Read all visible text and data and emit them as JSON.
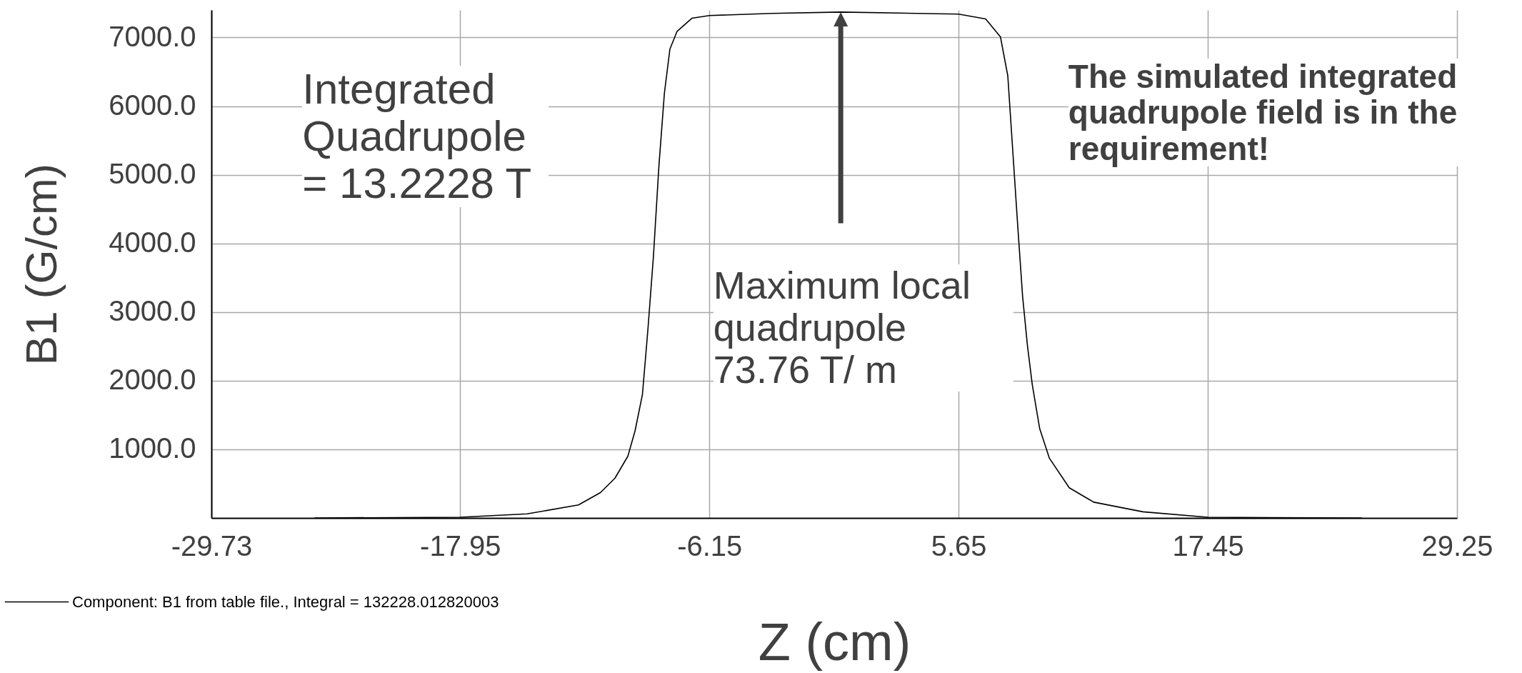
{
  "chart_data": {
    "type": "line",
    "xlabel": "Z (cm)",
    "ylabel": "B1 (G/cm)",
    "x": [
      -24.83,
      -17.95,
      -14.78,
      -12.35,
      -11.31,
      -10.62,
      -10.01,
      -9.67,
      -9.32,
      -9.06,
      -8.8,
      -8.54,
      -8.28,
      -8.02,
      -7.68,
      -6.98,
      -6.15,
      -3.2,
      0.07,
      5.65,
      6.93,
      7.63,
      7.98,
      8.21,
      8.44,
      8.68,
      8.91,
      9.14,
      9.49,
      9.95,
      10.89,
      12.05,
      14.38,
      17.45,
      24.73
    ],
    "series": [
      {
        "name": "Component: B1 from table file., Integral = 132228.012820003",
        "color": "#000000",
        "values": [
          0,
          10,
          60,
          190,
          370,
          580,
          900,
          1270,
          1800,
          2750,
          3810,
          5130,
          6190,
          6830,
          7090,
          7280,
          7320,
          7350,
          7370,
          7340,
          7270,
          7010,
          6440,
          5370,
          4300,
          3230,
          2510,
          1940,
          1300,
          870,
          440,
          230,
          90,
          10,
          0
        ]
      }
    ],
    "xlim": [
      -29.73,
      29.25
    ],
    "xticks": [
      -29.73,
      -17.95,
      -6.15,
      5.65,
      17.45,
      29.25
    ],
    "ylim": [
      0,
      7400
    ],
    "yticks": [
      {
        "value": 1000,
        "label": "1000.0"
      },
      {
        "value": 2000,
        "label": "2000.0"
      },
      {
        "value": 3000,
        "label": "3000.0"
      },
      {
        "value": 4000,
        "label": "4000.0"
      },
      {
        "value": 5000,
        "label": "5000.0"
      },
      {
        "value": 6000,
        "label": "6000.0"
      },
      {
        "value": 7000,
        "label": "7000.0"
      }
    ],
    "grid": true,
    "legend": "bottom left",
    "annotations": [
      "Integrated Quadrupole = 13.2228 T",
      "Maximum local quadrupole 73.76 T/ m",
      "The simulated integrated quadrupole field is in the requirement!"
    ]
  }
}
